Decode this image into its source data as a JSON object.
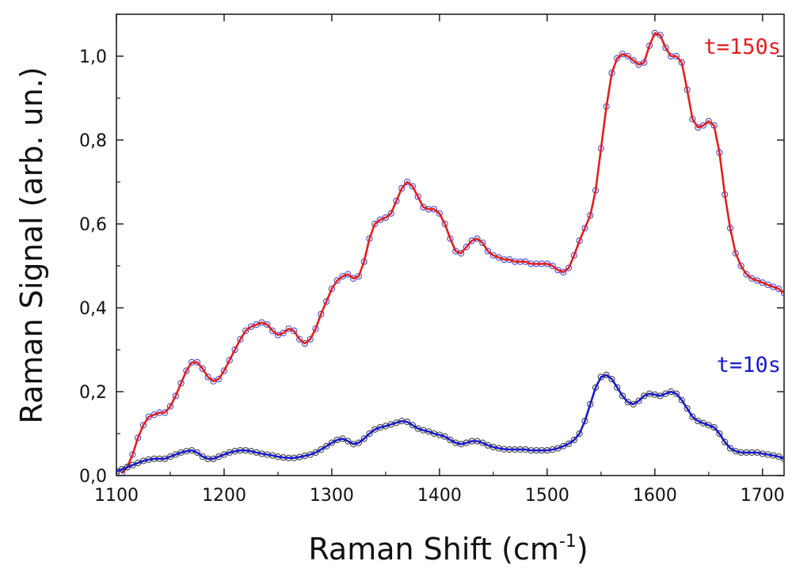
{
  "chart_data": {
    "type": "line",
    "xlabel": "Raman Shift (cm",
    "xlabel_superscript": "-1",
    "xlabel_suffix": ")",
    "ylabel": "Raman Signal (arb. un.)",
    "xlim": [
      1100,
      1720
    ],
    "ylim": [
      0.0,
      1.1
    ],
    "x_ticks": [
      1100,
      1200,
      1300,
      1400,
      1500,
      1600,
      1700
    ],
    "x_tick_labels": [
      "1100",
      "1200",
      "1300",
      "1400",
      "1500",
      "1600",
      "1700"
    ],
    "y_ticks": [
      0.0,
      0.2,
      0.4,
      0.6,
      0.8,
      1.0
    ],
    "y_tick_labels": [
      "0,0",
      "0,2",
      "0,4",
      "0,6",
      "0,8",
      "1,0"
    ],
    "grid": false,
    "series": [
      {
        "name": "t=150s",
        "line_color": "#e02020",
        "marker_color": "#3a3acc",
        "marker": "open-circle",
        "x": [
          1105,
          1110,
          1115,
          1120,
          1125,
          1130,
          1135,
          1140,
          1145,
          1150,
          1155,
          1160,
          1165,
          1170,
          1175,
          1180,
          1185,
          1190,
          1195,
          1200,
          1205,
          1210,
          1215,
          1220,
          1225,
          1230,
          1235,
          1240,
          1245,
          1250,
          1255,
          1260,
          1265,
          1270,
          1275,
          1280,
          1285,
          1290,
          1295,
          1300,
          1305,
          1310,
          1315,
          1320,
          1325,
          1330,
          1335,
          1340,
          1345,
          1350,
          1355,
          1360,
          1365,
          1370,
          1375,
          1380,
          1385,
          1390,
          1395,
          1400,
          1405,
          1410,
          1415,
          1420,
          1425,
          1430,
          1435,
          1440,
          1445,
          1450,
          1455,
          1460,
          1465,
          1470,
          1475,
          1480,
          1485,
          1490,
          1495,
          1500,
          1505,
          1510,
          1515,
          1520,
          1525,
          1530,
          1535,
          1540,
          1545,
          1550,
          1555,
          1560,
          1565,
          1570,
          1575,
          1580,
          1585,
          1590,
          1595,
          1600,
          1605,
          1610,
          1615,
          1620,
          1625,
          1630,
          1635,
          1640,
          1645,
          1650,
          1655,
          1660,
          1665,
          1670,
          1675,
          1680,
          1685,
          1690,
          1695,
          1700,
          1705,
          1710,
          1715,
          1720
        ],
        "y": [
          0.005,
          0.02,
          0.05,
          0.09,
          0.12,
          0.14,
          0.145,
          0.15,
          0.15,
          0.165,
          0.19,
          0.22,
          0.25,
          0.27,
          0.27,
          0.255,
          0.235,
          0.225,
          0.23,
          0.25,
          0.275,
          0.3,
          0.325,
          0.345,
          0.355,
          0.36,
          0.365,
          0.36,
          0.345,
          0.335,
          0.34,
          0.35,
          0.345,
          0.325,
          0.315,
          0.325,
          0.35,
          0.385,
          0.415,
          0.445,
          0.465,
          0.475,
          0.48,
          0.47,
          0.475,
          0.51,
          0.565,
          0.6,
          0.61,
          0.615,
          0.625,
          0.655,
          0.685,
          0.7,
          0.69,
          0.665,
          0.64,
          0.635,
          0.635,
          0.625,
          0.6,
          0.565,
          0.535,
          0.53,
          0.545,
          0.56,
          0.565,
          0.555,
          0.535,
          0.525,
          0.52,
          0.515,
          0.515,
          0.51,
          0.51,
          0.51,
          0.505,
          0.505,
          0.505,
          0.505,
          0.5,
          0.49,
          0.485,
          0.495,
          0.525,
          0.56,
          0.59,
          0.62,
          0.68,
          0.78,
          0.88,
          0.96,
          0.995,
          1.005,
          1.0,
          0.99,
          0.98,
          0.985,
          1.025,
          1.055,
          1.05,
          1.02,
          1.0,
          1.0,
          0.985,
          0.92,
          0.85,
          0.83,
          0.835,
          0.845,
          0.835,
          0.77,
          0.67,
          0.59,
          0.53,
          0.5,
          0.48,
          0.47,
          0.465,
          0.46,
          0.455,
          0.45,
          0.445,
          0.435
        ]
      },
      {
        "name": "t=10s",
        "line_color": "#1a1acc",
        "marker_color": "#333333",
        "marker": "open-circle",
        "x": [
          1100,
          1105,
          1110,
          1115,
          1120,
          1125,
          1130,
          1135,
          1140,
          1145,
          1150,
          1155,
          1160,
          1165,
          1170,
          1175,
          1180,
          1185,
          1190,
          1195,
          1200,
          1205,
          1210,
          1215,
          1220,
          1225,
          1230,
          1235,
          1240,
          1245,
          1250,
          1255,
          1260,
          1265,
          1270,
          1275,
          1280,
          1285,
          1290,
          1295,
          1300,
          1305,
          1310,
          1315,
          1320,
          1325,
          1330,
          1335,
          1340,
          1345,
          1350,
          1355,
          1360,
          1365,
          1370,
          1375,
          1380,
          1385,
          1390,
          1395,
          1400,
          1405,
          1410,
          1415,
          1420,
          1425,
          1430,
          1435,
          1440,
          1445,
          1450,
          1455,
          1460,
          1465,
          1470,
          1475,
          1480,
          1485,
          1490,
          1495,
          1500,
          1505,
          1510,
          1515,
          1520,
          1525,
          1530,
          1535,
          1540,
          1545,
          1550,
          1555,
          1560,
          1565,
          1570,
          1575,
          1580,
          1585,
          1590,
          1595,
          1600,
          1605,
          1610,
          1615,
          1620,
          1625,
          1630,
          1635,
          1640,
          1645,
          1650,
          1655,
          1660,
          1665,
          1670,
          1675,
          1680,
          1685,
          1690,
          1695,
          1700,
          1705,
          1710,
          1715,
          1720
        ],
        "y": [
          0.01,
          0.015,
          0.02,
          0.025,
          0.03,
          0.035,
          0.038,
          0.04,
          0.04,
          0.04,
          0.045,
          0.05,
          0.055,
          0.058,
          0.06,
          0.055,
          0.045,
          0.04,
          0.04,
          0.045,
          0.05,
          0.055,
          0.058,
          0.06,
          0.06,
          0.058,
          0.055,
          0.052,
          0.05,
          0.048,
          0.045,
          0.043,
          0.042,
          0.042,
          0.044,
          0.047,
          0.05,
          0.055,
          0.062,
          0.07,
          0.078,
          0.085,
          0.088,
          0.082,
          0.075,
          0.078,
          0.088,
          0.1,
          0.11,
          0.115,
          0.118,
          0.122,
          0.126,
          0.13,
          0.128,
          0.12,
          0.112,
          0.108,
          0.105,
          0.1,
          0.097,
          0.093,
          0.085,
          0.078,
          0.075,
          0.078,
          0.082,
          0.082,
          0.078,
          0.072,
          0.068,
          0.065,
          0.063,
          0.062,
          0.062,
          0.062,
          0.062,
          0.06,
          0.06,
          0.06,
          0.06,
          0.062,
          0.065,
          0.07,
          0.076,
          0.085,
          0.1,
          0.13,
          0.17,
          0.21,
          0.235,
          0.24,
          0.23,
          0.21,
          0.19,
          0.175,
          0.17,
          0.178,
          0.19,
          0.195,
          0.193,
          0.19,
          0.195,
          0.2,
          0.195,
          0.18,
          0.16,
          0.14,
          0.13,
          0.125,
          0.12,
          0.115,
          0.1,
          0.08,
          0.065,
          0.058,
          0.055,
          0.055,
          0.055,
          0.055,
          0.052,
          0.05,
          0.048,
          0.045,
          0.04
        ]
      }
    ]
  }
}
